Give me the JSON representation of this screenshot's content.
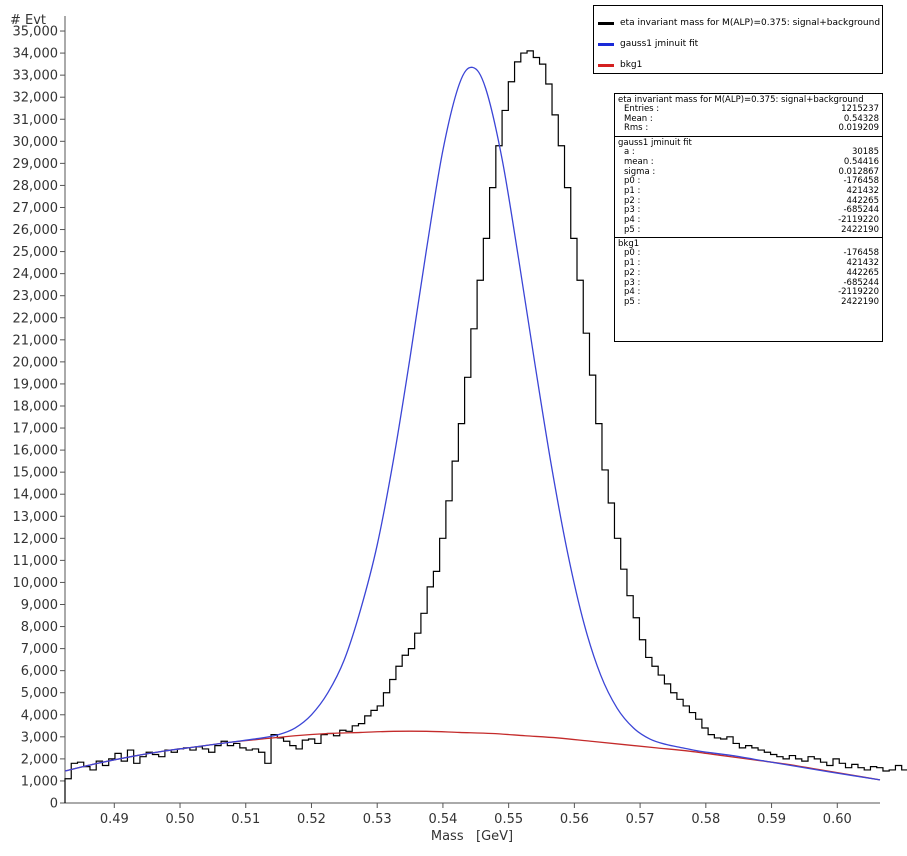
{
  "chart_data": {
    "type": "histogram",
    "ylabel": "# Evt",
    "xlabel": "Mass   [GeV]",
    "xlim": [
      0.4825,
      0.6065
    ],
    "ylim": [
      0,
      35500
    ],
    "x_ticks": [
      "0.49",
      "0.50",
      "0.51",
      "0.52",
      "0.53",
      "0.54",
      "0.55",
      "0.56",
      "0.57",
      "0.58",
      "0.59",
      "0.60"
    ],
    "x_tick_values": [
      0.49,
      0.5,
      0.51,
      0.52,
      0.53,
      0.54,
      0.55,
      0.56,
      0.57,
      0.58,
      0.59,
      0.6
    ],
    "y_ticks": [
      "0",
      "1,000",
      "2,000",
      "3,000",
      "4,000",
      "5,000",
      "6,000",
      "7,000",
      "8,000",
      "9,000",
      "10,000",
      "11,000",
      "12,000",
      "13,000",
      "14,000",
      "15,000",
      "16,000",
      "17,000",
      "18,000",
      "19,000",
      "20,000",
      "21,000",
      "22,000",
      "23,000",
      "24,000",
      "25,000",
      "26,000",
      "27,000",
      "28,000",
      "29,000",
      "30,000",
      "31,000",
      "32,000",
      "33,000",
      "34,000",
      "35,000"
    ],
    "y_tick_values": [
      0,
      1000,
      2000,
      3000,
      4000,
      5000,
      6000,
      7000,
      8000,
      9000,
      10000,
      11000,
      12000,
      13000,
      14000,
      15000,
      16000,
      17000,
      18000,
      19000,
      20000,
      21000,
      22000,
      23000,
      24000,
      25000,
      26000,
      27000,
      28000,
      29000,
      30000,
      31000,
      32000,
      33000,
      34000,
      35000
    ],
    "histogram": {
      "name": "eta invariant mass for M(ALP)=0.375: signal+background",
      "color": "#000000",
      "bin_start": 0.4825,
      "bin_width": 0.00095,
      "counts": [
        1100,
        1800,
        1850,
        1650,
        1500,
        1900,
        1700,
        2000,
        2250,
        1900,
        2400,
        1800,
        2100,
        2300,
        2200,
        2100,
        2400,
        2300,
        2450,
        2500,
        2400,
        2550,
        2450,
        2300,
        2600,
        2800,
        2600,
        2700,
        2500,
        2400,
        2450,
        2300,
        1800,
        3100,
        2950,
        2800,
        2600,
        2450,
        2850,
        2900,
        2700,
        3100,
        3150,
        3050,
        3300,
        3250,
        3500,
        3600,
        3950,
        4200,
        4400,
        5000,
        5600,
        6200,
        6700,
        7000,
        7700,
        8600,
        9800,
        10500,
        12000,
        13700,
        15500,
        17200,
        19300,
        21500,
        23700,
        25600,
        27900,
        29800,
        31400,
        32700,
        33600,
        34000,
        34100,
        33800,
        33500,
        32600,
        31200,
        29800,
        27900,
        25600,
        23700,
        21300,
        19400,
        17200,
        15100,
        13600,
        12000,
        10600,
        9400,
        8400,
        7400,
        6600,
        6200,
        5800,
        5400,
        5000,
        4700,
        4400,
        4100,
        3800,
        3400,
        3100,
        2950,
        2900,
        3000,
        2700,
        2500,
        2600,
        2500,
        2400,
        2300,
        2200,
        2100,
        2000,
        2150,
        2000,
        1900,
        2100,
        2000,
        1850,
        1700,
        2000,
        1800,
        1600,
        1750,
        1600,
        1500,
        1650,
        1600,
        1450,
        1500,
        1700,
        1500,
        1400,
        1300,
        1550,
        1400,
        1350,
        1250,
        1650
      ],
      "legend_swatch_color": "#000000"
    },
    "series": [
      {
        "name": "gauss1 jminuit fit",
        "color": "#3b45d6",
        "x": [
          0.4825,
          0.4875,
          0.4925,
          0.4975,
          0.5025,
          0.5075,
          0.5125,
          0.515,
          0.5175,
          0.52,
          0.5225,
          0.525,
          0.5275,
          0.53,
          0.5325,
          0.535,
          0.5375,
          0.54,
          0.5425,
          0.5445,
          0.5465,
          0.549,
          0.5515,
          0.554,
          0.5565,
          0.559,
          0.5615,
          0.564,
          0.5665,
          0.569,
          0.5715,
          0.574,
          0.5765,
          0.579,
          0.584,
          0.589,
          0.594,
          0.599,
          0.6065
        ],
        "y": [
          1450,
          1800,
          2100,
          2350,
          2550,
          2750,
          2950,
          3100,
          3400,
          4000,
          5000,
          6500,
          8800,
          11700,
          15600,
          20200,
          25100,
          29600,
          32600,
          33350,
          32400,
          29200,
          24700,
          19900,
          15300,
          11300,
          8100,
          5800,
          4300,
          3400,
          2900,
          2650,
          2500,
          2350,
          2150,
          1900,
          1650,
          1400,
          1050
        ]
      },
      {
        "name": "bkg1",
        "color": "#c42b2b",
        "x": [
          0.4825,
          0.4875,
          0.4925,
          0.4975,
          0.5025,
          0.5075,
          0.5125,
          0.5175,
          0.5225,
          0.5275,
          0.5325,
          0.5375,
          0.5425,
          0.5475,
          0.5525,
          0.5575,
          0.5625,
          0.5675,
          0.5725,
          0.5775,
          0.5825,
          0.5875,
          0.5925,
          0.5975,
          0.6025,
          0.6065
        ],
        "y": [
          1450,
          1800,
          2100,
          2350,
          2550,
          2750,
          2900,
          3050,
          3150,
          3200,
          3250,
          3250,
          3200,
          3150,
          3050,
          2950,
          2800,
          2650,
          2500,
          2350,
          2150,
          1950,
          1750,
          1500,
          1250,
          1050
        ]
      }
    ]
  },
  "legend": {
    "items": [
      {
        "label": "eta invariant mass for M(ALP)=0.375: signal+background",
        "color": "#000000"
      },
      {
        "label": "gauss1 jminuit fit",
        "color": "#1a2ad8"
      },
      {
        "label": "bkg1",
        "color": "#d42020"
      }
    ]
  },
  "stats": {
    "hist": {
      "title": "eta invariant mass for M(ALP)=0.375: signal+background",
      "rows": [
        {
          "k": "Entries :",
          "v": "1215237"
        },
        {
          "k": "Mean :",
          "v": "0.54328"
        },
        {
          "k": "Rms :",
          "v": "0.019209"
        }
      ]
    },
    "gauss": {
      "title": "gauss1 jminuit fit",
      "rows": [
        {
          "k": "a :",
          "v": "30185"
        },
        {
          "k": "mean :",
          "v": "0.54416"
        },
        {
          "k": "sigma :",
          "v": "0.012867"
        },
        {
          "k": "p0 :",
          "v": "-176458"
        },
        {
          "k": "p1 :",
          "v": "421432"
        },
        {
          "k": "p2 :",
          "v": "442265"
        },
        {
          "k": "p3 :",
          "v": "-685244"
        },
        {
          "k": "p4 :",
          "v": "-2119220"
        },
        {
          "k": "p5 :",
          "v": "2422190"
        }
      ]
    },
    "bkg": {
      "title": "bkg1",
      "rows": [
        {
          "k": "p0 :",
          "v": "-176458"
        },
        {
          "k": "p1 :",
          "v": "421432"
        },
        {
          "k": "p2 :",
          "v": "442265"
        },
        {
          "k": "p3 :",
          "v": "-685244"
        },
        {
          "k": "p4 :",
          "v": "-2119220"
        },
        {
          "k": "p5 :",
          "v": "2422190"
        }
      ]
    }
  }
}
